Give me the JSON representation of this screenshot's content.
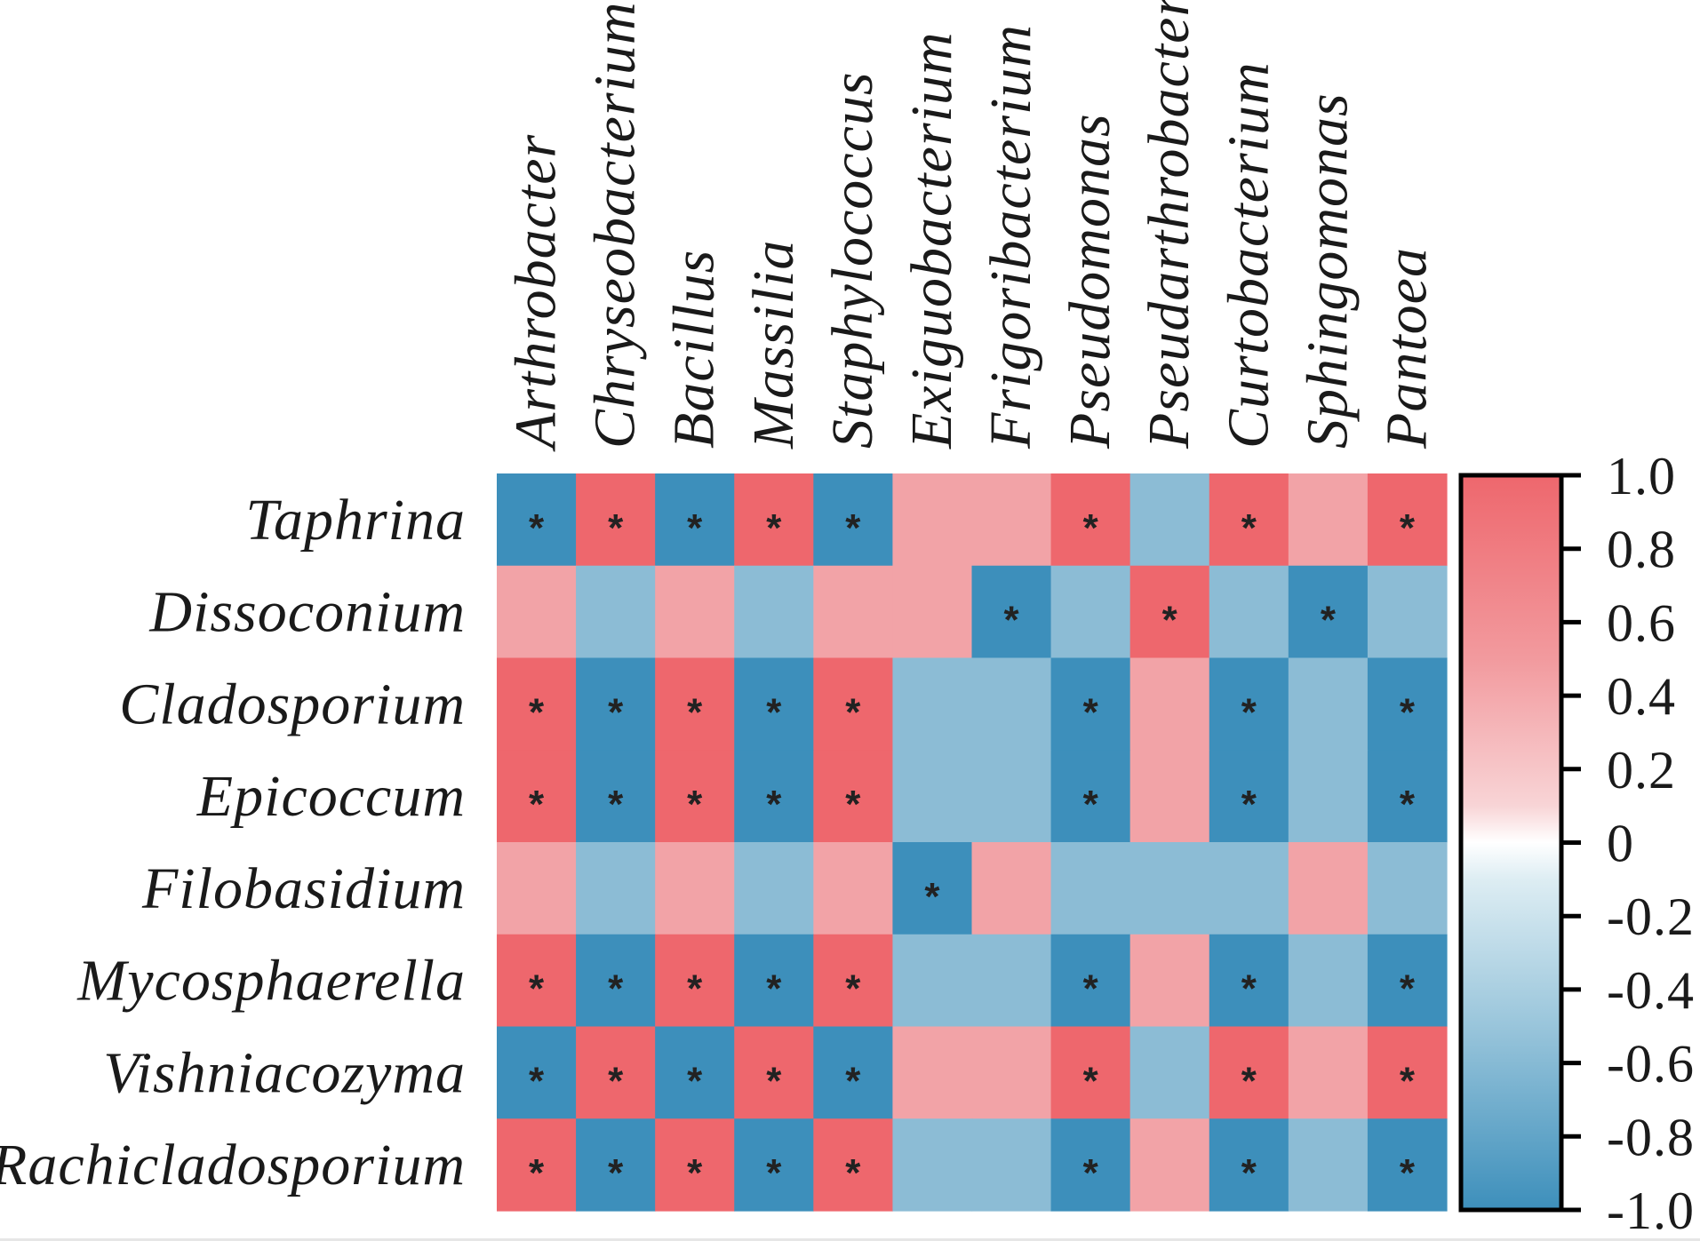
{
  "chart_data": {
    "type": "heatmap",
    "title": "",
    "xlabel": "",
    "ylabel": "",
    "columns": [
      "Arthrobacter",
      "Chryseobacterium",
      "Bacillus",
      "Massilia",
      "Staphylococcus",
      "Exiguobacterium",
      "Frigoribacterium",
      "Pseudomonas",
      "Pseudarthrobacter",
      "Curtobacterium",
      "Sphingomonas",
      "Pantoea"
    ],
    "rows": [
      "Taphrina",
      "Dissoconium",
      "Cladosporium",
      "Epicoccum",
      "Filobasidium",
      "Mycosphaerella",
      "Vishniacozyma",
      "Rachicladosporium"
    ],
    "values": [
      [
        -0.95,
        0.95,
        -0.95,
        0.95,
        -0.95,
        0.5,
        0.5,
        0.95,
        -0.55,
        0.95,
        0.5,
        0.95
      ],
      [
        0.5,
        -0.55,
        0.5,
        -0.55,
        0.5,
        0.5,
        -0.95,
        -0.55,
        0.95,
        -0.55,
        -0.95,
        -0.55
      ],
      [
        0.95,
        -0.95,
        0.95,
        -0.95,
        0.95,
        -0.55,
        -0.55,
        -0.95,
        0.5,
        -0.95,
        -0.55,
        -0.95
      ],
      [
        0.95,
        -0.95,
        0.95,
        -0.95,
        0.95,
        -0.55,
        -0.55,
        -0.95,
        0.5,
        -0.95,
        -0.55,
        -0.95
      ],
      [
        0.5,
        -0.55,
        0.5,
        -0.55,
        0.5,
        -0.95,
        0.5,
        -0.55,
        -0.55,
        -0.55,
        0.5,
        -0.55
      ],
      [
        0.95,
        -0.95,
        0.95,
        -0.95,
        0.95,
        -0.55,
        -0.55,
        -0.95,
        0.5,
        -0.95,
        -0.55,
        -0.95
      ],
      [
        -0.95,
        0.95,
        -0.95,
        0.95,
        -0.95,
        0.5,
        0.5,
        0.95,
        -0.55,
        0.95,
        0.5,
        0.95
      ],
      [
        0.95,
        -0.95,
        0.95,
        -0.95,
        0.95,
        -0.55,
        -0.55,
        -0.95,
        0.5,
        -0.95,
        -0.55,
        -0.95
      ]
    ],
    "significant": [
      [
        1,
        1,
        1,
        1,
        1,
        0,
        0,
        1,
        0,
        1,
        0,
        1
      ],
      [
        0,
        0,
        0,
        0,
        0,
        0,
        1,
        0,
        1,
        0,
        1,
        0
      ],
      [
        1,
        1,
        1,
        1,
        1,
        0,
        0,
        1,
        0,
        1,
        0,
        1
      ],
      [
        1,
        1,
        1,
        1,
        1,
        0,
        0,
        1,
        0,
        1,
        0,
        1
      ],
      [
        0,
        0,
        0,
        0,
        0,
        1,
        0,
        0,
        0,
        0,
        0,
        0
      ],
      [
        1,
        1,
        1,
        1,
        1,
        0,
        0,
        1,
        0,
        1,
        0,
        1
      ],
      [
        1,
        1,
        1,
        1,
        1,
        0,
        0,
        1,
        0,
        1,
        0,
        1
      ],
      [
        1,
        1,
        1,
        1,
        1,
        0,
        0,
        1,
        0,
        1,
        0,
        1
      ]
    ],
    "significance_marker": "*",
    "colorbar": {
      "range": [
        -1.0,
        1.0
      ],
      "ticks": [
        1.0,
        0.8,
        0.6,
        0.4,
        0.2,
        0,
        -0.2,
        -0.4,
        -0.6,
        -0.8,
        -1.0
      ],
      "tick_labels": [
        "1.0",
        "0.8",
        "0.6",
        "0.4",
        "0.2",
        "0",
        "-0.2",
        "-0.4",
        "-0.6",
        "-0.8",
        "-1.0"
      ],
      "placement": "right"
    },
    "palette": {
      "strong_positive": "#EE676D",
      "moderate_positive": "#F2A3A7",
      "zero": "#FFFFFF",
      "moderate_negative": "#8CBCD5",
      "strong_negative": "#3D8FBB"
    }
  }
}
